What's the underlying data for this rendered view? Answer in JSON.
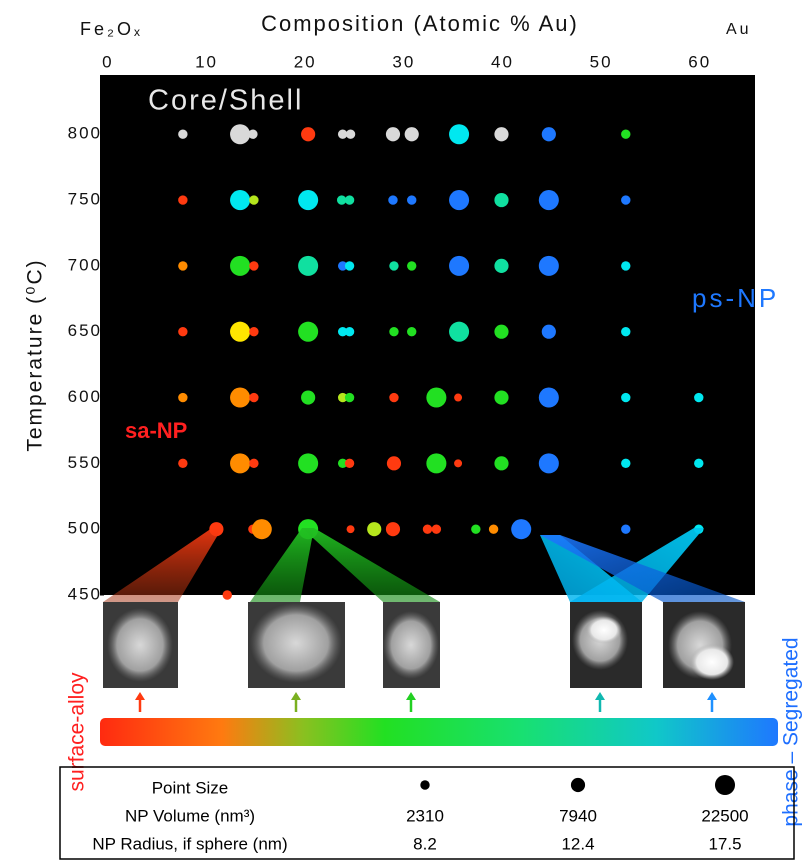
{
  "chart_data": {
    "type": "scatter",
    "title": "Composition (Atomic % Au)",
    "x_left_label": "Fe₂Oₓ",
    "x_right_label": "Au",
    "y_label": "Temperature (⁰C)",
    "annotations": [
      "Core/Shell",
      "ps-NP",
      "sa-NP"
    ],
    "gradient_labels": [
      "surface-alloy",
      "phase – Segregated"
    ],
    "xlim": [
      -0.8,
      65.6
    ],
    "xticks": [
      0,
      10,
      20,
      30,
      40,
      50,
      60
    ],
    "ylim": [
      450,
      845
    ],
    "yticks": [
      450,
      500,
      550,
      600,
      650,
      700,
      750,
      800
    ],
    "x": [
      7.6,
      13.4,
      14.7,
      20.3,
      23.8,
      24.6,
      28.9,
      30.8,
      35.6,
      39.9,
      44.7,
      52.5,
      7.6,
      13.4,
      14.8,
      20.3,
      23.7,
      24.5,
      28.9,
      30.8,
      35.6,
      39.9,
      44.7,
      52.5,
      7.6,
      13.4,
      14.8,
      20.3,
      23.8,
      24.5,
      29.0,
      30.8,
      35.6,
      39.9,
      44.7,
      52.5,
      7.6,
      13.4,
      14.8,
      20.3,
      23.8,
      24.5,
      29.0,
      30.8,
      35.6,
      39.9,
      44.7,
      52.5,
      7.6,
      13.4,
      14.8,
      20.3,
      23.8,
      24.5,
      29.0,
      33.3,
      35.5,
      39.9,
      44.7,
      52.5,
      59.9,
      7.6,
      13.4,
      14.8,
      20.3,
      23.8,
      24.5,
      29.0,
      33.3,
      35.5,
      39.9,
      44.7,
      52.5,
      59.9,
      11.0,
      14.7,
      15.6,
      20.3,
      24.6,
      27.0,
      28.9,
      32.4,
      33.3,
      37.3,
      39.1,
      41.9,
      52.5,
      59.9,
      12.1
    ],
    "y": [
      800,
      800,
      800,
      800,
      800,
      800,
      800,
      800,
      800,
      800,
      800,
      800,
      750,
      750,
      750,
      750,
      750,
      750,
      750,
      750,
      750,
      750,
      750,
      750,
      700,
      700,
      700,
      700,
      700,
      700,
      700,
      700,
      700,
      700,
      700,
      700,
      650,
      650,
      650,
      650,
      650,
      650,
      650,
      650,
      650,
      650,
      650,
      650,
      600,
      600,
      600,
      600,
      600,
      600,
      600,
      600,
      600,
      600,
      600,
      600,
      600,
      550,
      550,
      550,
      550,
      550,
      550,
      550,
      550,
      550,
      550,
      550,
      550,
      550,
      500,
      500,
      500,
      500,
      500,
      500,
      500,
      500,
      500,
      500,
      500,
      500,
      500,
      500,
      450
    ],
    "sizes": [
      2310,
      22500,
      2310,
      7940,
      2310,
      2310,
      7940,
      7940,
      22500,
      7940,
      7940,
      2310,
      2310,
      22500,
      2310,
      22500,
      2310,
      2310,
      2310,
      2310,
      22500,
      7940,
      22500,
      2310,
      2310,
      22500,
      2310,
      22500,
      2310,
      2310,
      2310,
      2310,
      22500,
      7940,
      22500,
      2310,
      2310,
      22500,
      2310,
      22500,
      2310,
      2310,
      2310,
      2310,
      22500,
      7940,
      7940,
      2310,
      2310,
      22500,
      2310,
      7940,
      2310,
      2310,
      2310,
      22500,
      1400,
      7940,
      22500,
      2310,
      2310,
      2310,
      22500,
      2310,
      22500,
      2310,
      2310,
      7940,
      22500,
      1400,
      7940,
      22500,
      2310,
      2310,
      7940,
      2310,
      22500,
      22500,
      1400,
      7940,
      7940,
      2310,
      2310,
      2310,
      2310,
      22500,
      2310,
      2310,
      2310
    ],
    "colors": [
      "#d9d9d9",
      "#d9d9d9",
      "#d9d9d9",
      "#ff3a10",
      "#d9d9d9",
      "#d9d9d9",
      "#d9d9d9",
      "#d9d9d9",
      "#00e8f0",
      "#d9d9d9",
      "#1e78ff",
      "#22e022",
      "#ff3a10",
      "#00e8f0",
      "#b5e61d",
      "#00e8f0",
      "#10e0a0",
      "#10e0a0",
      "#1e78ff",
      "#1e78ff",
      "#1e78ff",
      "#10e0a0",
      "#1e78ff",
      "#1e78ff",
      "#ff8c00",
      "#22e022",
      "#ff3a10",
      "#10e0a0",
      "#1e78ff",
      "#00e8f0",
      "#10e0a0",
      "#22e022",
      "#1e78ff",
      "#10e0a0",
      "#1e78ff",
      "#00e8f0",
      "#ff3a10",
      "#ffe600",
      "#ff3a10",
      "#22e022",
      "#00e8f0",
      "#00e8f0",
      "#22e022",
      "#22e022",
      "#10e0a0",
      "#22e022",
      "#1e78ff",
      "#00e8f0",
      "#ff8c00",
      "#ff8c00",
      "#ff3a10",
      "#22e022",
      "#b5e61d",
      "#22e022",
      "#ff3a10",
      "#22e022",
      "#ff3a10",
      "#22e022",
      "#1e78ff",
      "#00e8f0",
      "#00e8f0",
      "#ff3a10",
      "#ff8c00",
      "#ff3a10",
      "#22e022",
      "#22e022",
      "#ff3a10",
      "#ff3a10",
      "#22e022",
      "#ff3a10",
      "#22e022",
      "#1e78ff",
      "#00e8f0",
      "#00e8f0",
      "#ff3a10",
      "#ff3a10",
      "#ff8c00",
      "#22e022",
      "#ff3a10",
      "#b5e61d",
      "#ff3a10",
      "#ff3a10",
      "#ff3a10",
      "#22e022",
      "#ff8c00",
      "#1e78ff",
      "#1e78ff",
      "#00e8f0",
      "#ff3a10"
    ],
    "size_legend": {
      "labels": [
        "Point Size",
        "NP Volume (nm³)",
        "NP Radius, if sphere (nm)"
      ],
      "volume": [
        2310,
        7940,
        22500
      ],
      "radius": [
        8.2,
        12.4,
        17.5
      ]
    }
  }
}
